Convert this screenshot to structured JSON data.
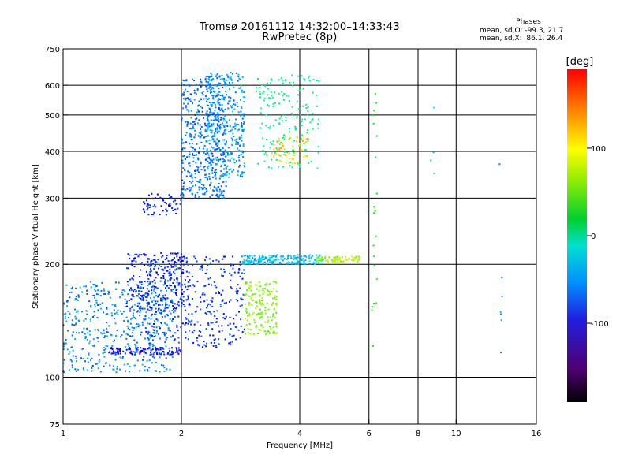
{
  "header": {
    "title_line1": "Tromsø 20161112 14:32:00–14:33:43",
    "title_line2": "RwPretec (8p)",
    "phases_label": "Phases",
    "stat_o": "mean, sd,O: -99.3, 21.7",
    "stat_x": "mean, sd,X:  86.1, 26.4"
  },
  "chart_data": {
    "type": "scatter",
    "xlabel": "Frequency [MHz]",
    "ylabel": "Stationary phase Virtual Height [km]",
    "xscale": "log",
    "yscale": "log",
    "xlim": [
      1,
      16
    ],
    "ylim": [
      75,
      750
    ],
    "xticks": [
      {
        "v": 1,
        "label": "1"
      },
      {
        "v": 2,
        "label": "2"
      },
      {
        "v": 4,
        "label": "4"
      },
      {
        "v": 6,
        "label": "6"
      },
      {
        "v": 8,
        "label": "8"
      },
      {
        "v": 10,
        "label": "10"
      },
      {
        "v": 16,
        "label": "16"
      }
    ],
    "xgrid": [
      2,
      4,
      6,
      8,
      10
    ],
    "yticks": [
      {
        "v": 75,
        "label": "75"
      },
      {
        "v": 100,
        "label": "100"
      },
      {
        "v": 200,
        "label": "200"
      },
      {
        "v": 300,
        "label": "300"
      },
      {
        "v": 400,
        "label": "400"
      },
      {
        "v": 500,
        "label": "500"
      },
      {
        "v": 600,
        "label": "600"
      },
      {
        "v": 750,
        "label": "750"
      }
    ],
    "ygrid": [
      100,
      200,
      300,
      400,
      500,
      600
    ],
    "colorbar": {
      "label": "[deg]",
      "range": [
        -190,
        190
      ],
      "ticks": [
        {
          "v": 100,
          "label": "100"
        },
        {
          "v": 0,
          "label": "0"
        },
        {
          "v": -100,
          "label": "-100"
        }
      ]
    },
    "series": [
      {
        "x_range": [
          1.0,
          1.9
        ],
        "y_range": [
          103,
          180
        ],
        "phase": -100,
        "count": 500
      },
      {
        "x_range": [
          1.3,
          2.0
        ],
        "y_range": [
          115,
          120
        ],
        "phase": -145,
        "count": 110
      },
      {
        "x_range": [
          1.45,
          2.1
        ],
        "y_range": [
          150,
          215
        ],
        "phase": -140,
        "count": 220
      },
      {
        "x_range": [
          1.55,
          2.9
        ],
        "y_range": [
          120,
          210
        ],
        "phase": -130,
        "count": 380
      },
      {
        "x_range": [
          2.0,
          2.6
        ],
        "y_range": [
          300,
          630
        ],
        "phase": -110,
        "count": 440
      },
      {
        "x_range": [
          1.6,
          2.0
        ],
        "y_range": [
          270,
          310
        ],
        "phase": -140,
        "count": 60
      },
      {
        "x_range": [
          2.3,
          2.9
        ],
        "y_range": [
          340,
          650
        ],
        "phase": -95,
        "count": 380
      },
      {
        "x_range": [
          2.85,
          4.6
        ],
        "y_range": [
          200,
          212
        ],
        "phase": -80,
        "count": 210
      },
      {
        "x_range": [
          4.4,
          5.7
        ],
        "y_range": [
          203,
          210
        ],
        "phase": 80,
        "count": 70
      },
      {
        "x_range": [
          3.1,
          4.5
        ],
        "y_range": [
          360,
          640
        ],
        "phase": -30,
        "count": 180
      },
      {
        "x_range": [
          3.4,
          4.2
        ],
        "y_range": [
          370,
          440
        ],
        "phase": 110,
        "count": 60
      },
      {
        "x_range": [
          2.9,
          3.5
        ],
        "y_range": [
          130,
          180
        ],
        "phase": 65,
        "count": 160
      },
      {
        "x_range": [
          6.1,
          6.3
        ],
        "y_range": [
          120,
          640
        ],
        "phase": 20,
        "count": 22
      },
      {
        "x_range": [
          8.6,
          8.8
        ],
        "y_range": [
          340,
          530
        ],
        "phase": -70,
        "count": 4
      },
      {
        "x_range": [
          12.9,
          13.1
        ],
        "y_range": [
          113,
          380
        ],
        "phase": -90,
        "count": 7
      }
    ]
  }
}
